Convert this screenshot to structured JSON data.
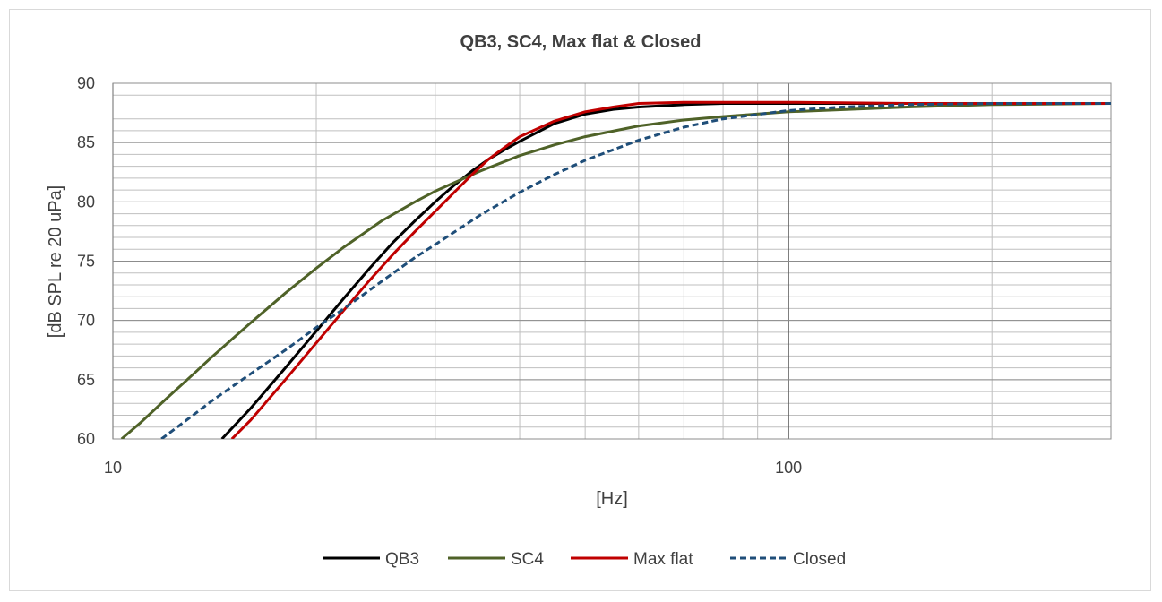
{
  "chart_data": {
    "type": "line",
    "title": "QB3, SC4, Max flat & Closed",
    "xlabel": "[Hz]",
    "ylabel": "[dB SPL re 20 uPa]",
    "xscale": "log",
    "xlim": [
      10,
      300
    ],
    "ylim": [
      60,
      90
    ],
    "yticks": [
      60,
      65,
      70,
      75,
      80,
      85,
      90
    ],
    "xtick_labels": [
      {
        "value": 10,
        "label": "10"
      },
      {
        "value": 100,
        "label": "100"
      }
    ],
    "grid": true,
    "legend": "bottom",
    "series": [
      {
        "name": "QB3",
        "color": "#000000",
        "dash": "solid",
        "x": [
          14.5,
          16,
          18,
          20,
          22,
          24,
          26,
          28,
          30,
          32,
          34,
          36,
          38,
          40,
          45,
          50,
          55,
          60,
          70,
          80,
          100,
          150,
          200,
          300
        ],
        "y": [
          60,
          62.6,
          66.0,
          69.1,
          71.9,
          74.4,
          76.6,
          78.4,
          80.0,
          81.4,
          82.6,
          83.6,
          84.4,
          85.1,
          86.6,
          87.4,
          87.8,
          88.0,
          88.2,
          88.3,
          88.3,
          88.3,
          88.3,
          88.3
        ]
      },
      {
        "name": "SC4",
        "color": "#4f6228",
        "dash": "solid",
        "x": [
          10.3,
          11,
          12,
          13,
          14,
          15,
          16,
          18,
          20,
          22,
          25,
          28,
          30,
          35,
          40,
          45,
          50,
          60,
          70,
          80,
          100,
          150,
          200,
          300
        ],
        "y": [
          60,
          61.4,
          63.4,
          65.2,
          66.9,
          68.4,
          69.8,
          72.3,
          74.4,
          76.2,
          78.4,
          80.0,
          80.9,
          82.6,
          83.9,
          84.8,
          85.5,
          86.4,
          86.9,
          87.2,
          87.6,
          88.0,
          88.2,
          88.3
        ]
      },
      {
        "name": "Max flat",
        "color": "#c00000",
        "dash": "solid",
        "x": [
          15,
          16,
          18,
          20,
          22,
          24,
          26,
          28,
          30,
          32,
          34,
          36,
          38,
          40,
          45,
          50,
          55,
          60,
          70,
          80,
          100,
          150,
          200,
          300
        ],
        "y": [
          60,
          61.6,
          65.0,
          68.1,
          70.9,
          73.4,
          75.6,
          77.5,
          79.2,
          80.8,
          82.3,
          83.6,
          84.6,
          85.5,
          86.8,
          87.6,
          88.0,
          88.3,
          88.4,
          88.4,
          88.4,
          88.3,
          88.3,
          88.3
        ]
      },
      {
        "name": "Closed",
        "color": "#1f4e79",
        "dash": "dashed",
        "x": [
          11.8,
          13,
          14,
          15,
          16,
          18,
          20,
          22,
          25,
          28,
          30,
          35,
          40,
          45,
          50,
          60,
          70,
          80,
          100,
          120,
          150,
          200,
          300
        ],
        "y": [
          60,
          61.8,
          63.2,
          64.4,
          65.5,
          67.5,
          69.4,
          71.0,
          73.3,
          75.3,
          76.4,
          78.9,
          80.8,
          82.3,
          83.5,
          85.2,
          86.3,
          87.0,
          87.7,
          88.0,
          88.2,
          88.3,
          88.3
        ]
      }
    ]
  }
}
